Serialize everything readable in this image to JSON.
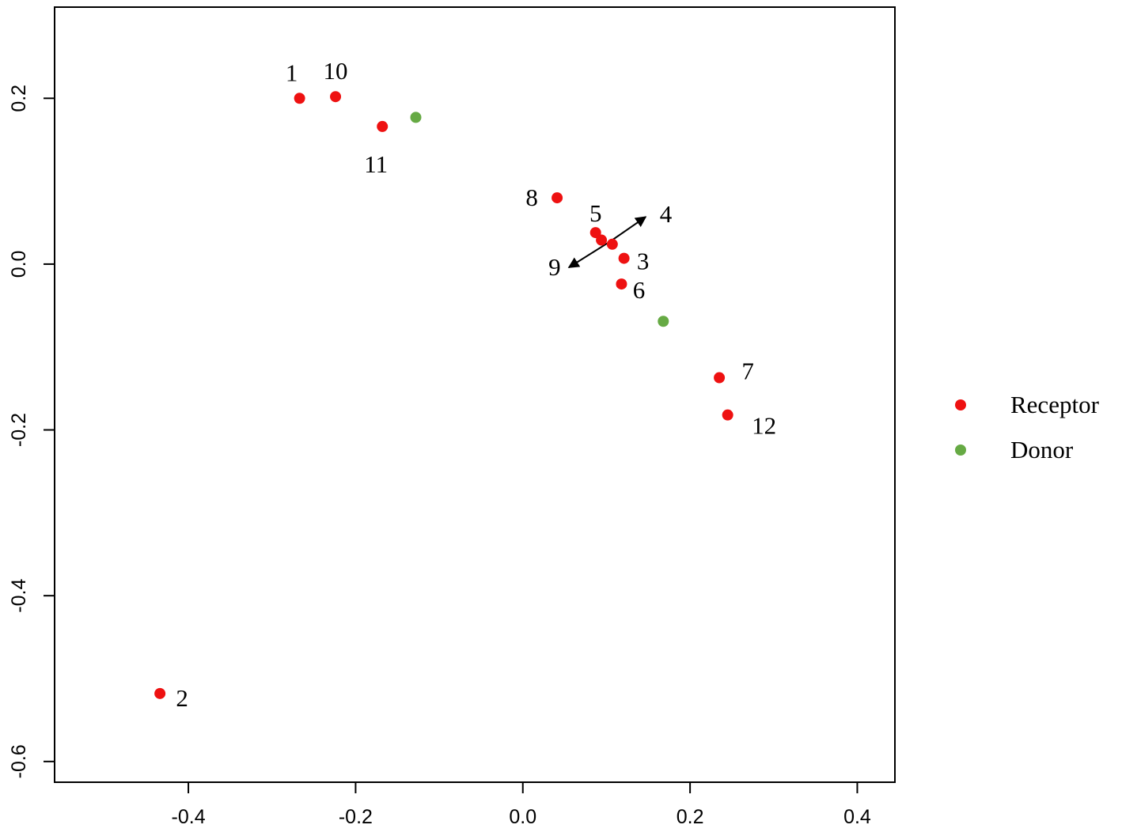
{
  "chart_data": {
    "type": "scatter",
    "title": "",
    "xlabel": "",
    "ylabel": "",
    "xlim": [
      -0.56,
      0.445
    ],
    "ylim": [
      -0.625,
      0.31
    ],
    "x_ticks": [
      "-0.4",
      "-0.2",
      "0.0",
      "0.2",
      "0.4"
    ],
    "x_tick_values": [
      -0.4,
      -0.2,
      0.0,
      0.2,
      0.4
    ],
    "y_ticks": [
      "-0.6",
      "-0.4",
      "-0.2",
      "0.0",
      "0.2"
    ],
    "y_tick_values": [
      -0.6,
      -0.4,
      -0.2,
      0.0,
      0.2
    ],
    "grid": false,
    "legend_position": "right",
    "series": [
      {
        "name": "Receptor",
        "color": "#ee1111",
        "points": [
          {
            "label": "1",
            "x": -0.267,
            "y": 0.2
          },
          {
            "label": "10",
            "x": -0.224,
            "y": 0.202
          },
          {
            "label": "11",
            "x": -0.168,
            "y": 0.166
          },
          {
            "label": "8",
            "x": 0.041,
            "y": 0.08
          },
          {
            "label": "5",
            "x": 0.087,
            "y": 0.038
          },
          {
            "label": "",
            "x": 0.094,
            "y": 0.029
          },
          {
            "label": "",
            "x": 0.107,
            "y": 0.024
          },
          {
            "label": "3",
            "x": 0.121,
            "y": 0.007
          },
          {
            "label": "6",
            "x": 0.118,
            "y": -0.024
          },
          {
            "label": "7",
            "x": 0.235,
            "y": -0.137
          },
          {
            "label": "12",
            "x": 0.245,
            "y": -0.182
          },
          {
            "label": "2",
            "x": -0.434,
            "y": -0.518
          }
        ]
      },
      {
        "name": "Donor",
        "color": "#66aa44",
        "points": [
          {
            "label": "",
            "x": -0.128,
            "y": 0.177
          },
          {
            "label": "",
            "x": 0.168,
            "y": -0.069
          }
        ]
      }
    ],
    "annotations": [
      {
        "text": "4",
        "x": 0.171,
        "y": 0.061,
        "arrow_from": [
          0.104,
          0.027
        ],
        "arrow_to": [
          0.147,
          0.057
        ]
      },
      {
        "text": "9",
        "x": 0.038,
        "y": -0.003,
        "arrow_from": [
          0.104,
          0.027
        ],
        "arrow_to": [
          0.055,
          -0.004
        ]
      }
    ]
  }
}
